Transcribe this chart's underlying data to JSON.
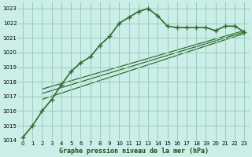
{
  "title": "Graphe pression niveau de la mer (hPa)",
  "background_color": "#cceee8",
  "grid_color": "#99ccbb",
  "line_color": "#2d6b2d",
  "series_main": {
    "x": [
      0,
      1,
      2,
      3,
      4,
      5,
      6,
      7,
      8,
      9,
      10,
      11,
      12,
      13,
      14,
      15,
      16,
      17,
      18,
      19,
      20,
      21,
      22,
      23
    ],
    "y": [
      1014.2,
      1015.0,
      1016.0,
      1016.8,
      1017.8,
      1018.7,
      1019.3,
      1019.7,
      1020.5,
      1021.1,
      1022.0,
      1022.4,
      1022.8,
      1023.0,
      1022.5,
      1021.8,
      1021.7,
      1021.7,
      1021.7,
      1021.7,
      1021.5,
      1021.8,
      1021.8,
      1021.4
    ]
  },
  "series_refs": [
    {
      "x": [
        2,
        23
      ],
      "y": [
        1016.8,
        1021.3
      ]
    },
    {
      "x": [
        2,
        23
      ],
      "y": [
        1017.2,
        1021.4
      ]
    },
    {
      "x": [
        2,
        23
      ],
      "y": [
        1017.5,
        1021.5
      ]
    }
  ],
  "xlim": [
    -0.5,
    23.5
  ],
  "ylim": [
    1014,
    1023.4
  ],
  "yticks": [
    1014,
    1015,
    1016,
    1017,
    1018,
    1019,
    1020,
    1021,
    1022,
    1023
  ],
  "xticks": [
    0,
    1,
    2,
    3,
    4,
    5,
    6,
    7,
    8,
    9,
    10,
    11,
    12,
    13,
    14,
    15,
    16,
    17,
    18,
    19,
    20,
    21,
    22,
    23
  ],
  "marker": "+",
  "markersize": 4,
  "linewidth": 1.2,
  "ref_linewidth": 0.9
}
